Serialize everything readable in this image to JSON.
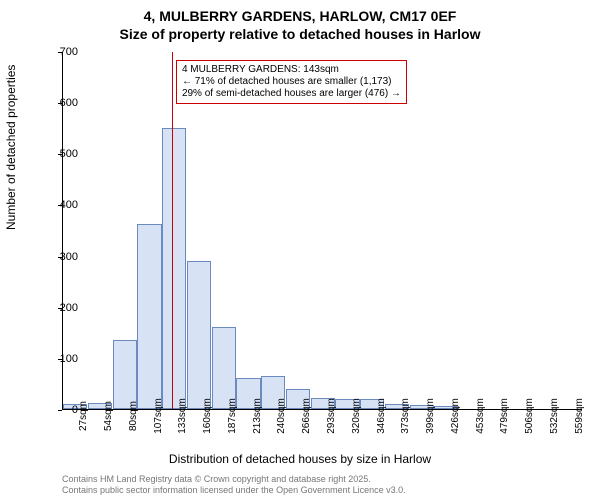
{
  "title": {
    "line1": "4, MULBERRY GARDENS, HARLOW, CM17 0EF",
    "line2": "Size of property relative to detached houses in Harlow"
  },
  "chart": {
    "type": "bar",
    "ylim": [
      0,
      700
    ],
    "ytick_step": 100,
    "bar_fill": "#d7e3f4",
    "bar_stroke": "#6b8bbf",
    "marker_color": "#cc0000",
    "marker_x_index": 4.4,
    "categories": [
      "27sqm",
      "54sqm",
      "80sqm",
      "107sqm",
      "133sqm",
      "160sqm",
      "187sqm",
      "213sqm",
      "240sqm",
      "266sqm",
      "293sqm",
      "320sqm",
      "346sqm",
      "373sqm",
      "399sqm",
      "426sqm",
      "453sqm",
      "479sqm",
      "506sqm",
      "532sqm",
      "559sqm"
    ],
    "values": [
      10,
      12,
      135,
      362,
      550,
      290,
      160,
      60,
      65,
      40,
      22,
      20,
      20,
      10,
      7,
      5,
      0,
      0,
      0,
      0,
      0
    ],
    "ylabel": "Number of detached properties",
    "xlabel": "Distribution of detached houses by size in Harlow",
    "label_fontsize": 12,
    "tick_fontsize": 11
  },
  "annotation": {
    "line1": "4 MULBERRY GARDENS: 143sqm",
    "line2": "← 71% of detached houses are smaller (1,173)",
    "line3": "29% of semi-detached houses are larger (476) →",
    "border_color": "#cc0000"
  },
  "license": {
    "line1": "Contains HM Land Registry data © Crown copyright and database right 2025.",
    "line2": "Contains public sector information licensed under the Open Government Licence v3.0."
  }
}
